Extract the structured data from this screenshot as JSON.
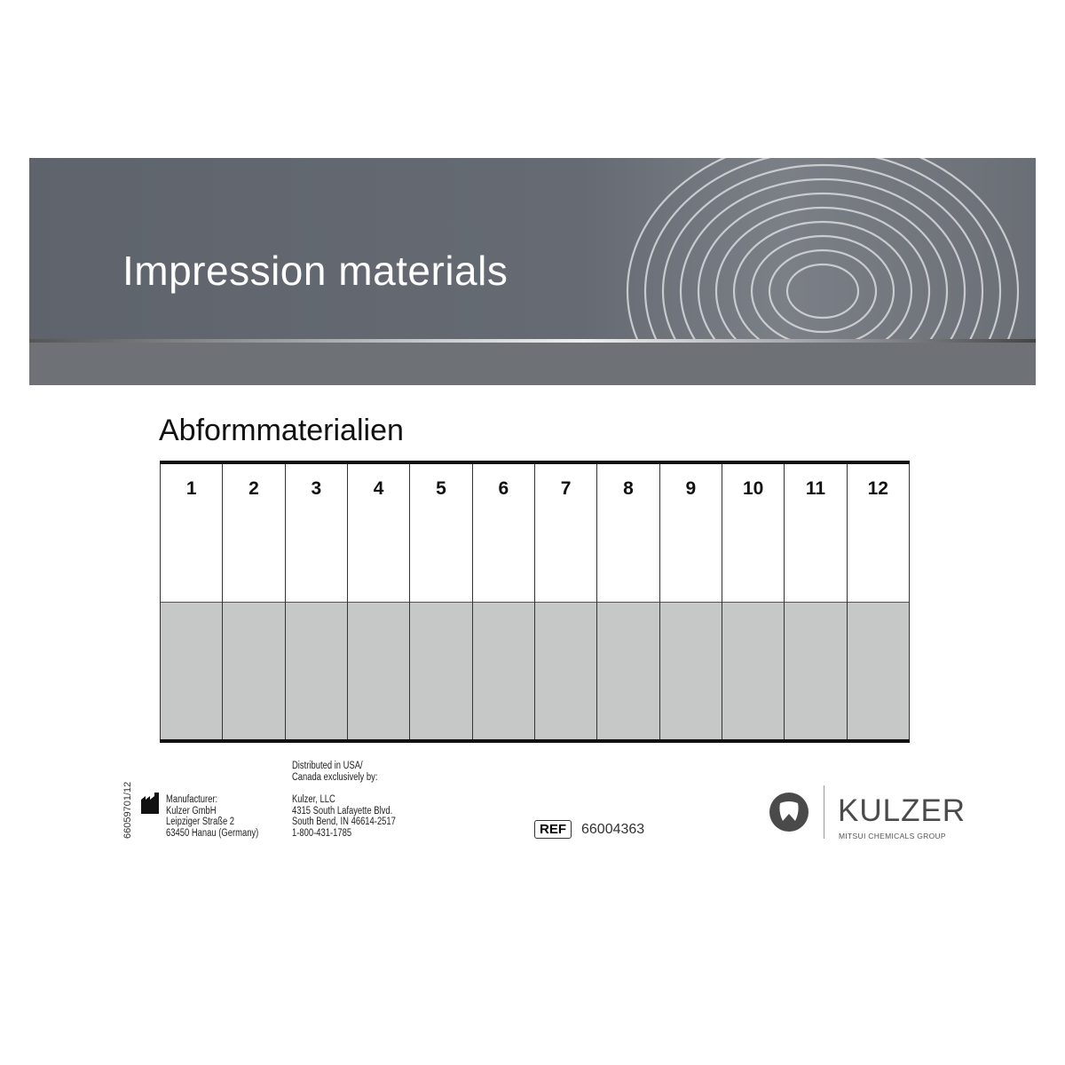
{
  "banner": {
    "title": "Impression materials"
  },
  "subtitle": "Abformmaterialien",
  "columns": [
    "1",
    "2",
    "3",
    "4",
    "5",
    "6",
    "7",
    "8",
    "9",
    "10",
    "11",
    "12"
  ],
  "footer": {
    "code": "66059701/12",
    "manufacturer": [
      "Manufacturer:",
      "Kulzer GmbH",
      "Leipziger Straße 2",
      "63450 Hanau (Germany)"
    ],
    "distributor_heading": [
      "Distributed in USA/",
      "Canada exclusively by:"
    ],
    "distributor": [
      "Kulzer, LLC",
      "4315 South Lafayette Blvd.",
      "South Bend, IN 46614-2517",
      "1-800-431-1785"
    ],
    "ref_label": "REF",
    "ref_number": "66004363",
    "brand": "KULZER",
    "brand_tagline": "MITSUI CHEMICALS GROUP"
  }
}
